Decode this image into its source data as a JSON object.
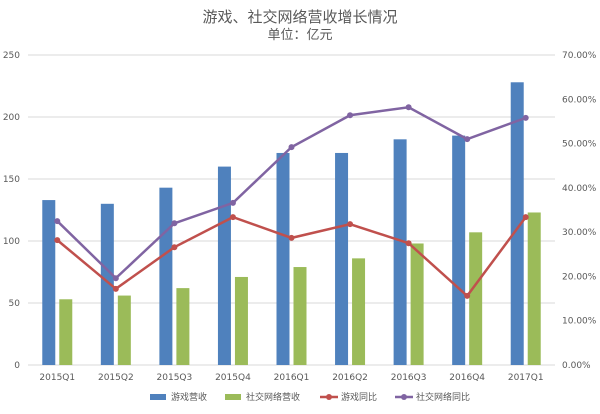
{
  "chart_data": {
    "type": "bar",
    "title": "游戏、社交网络营收增长情况",
    "subtitle": "单位：亿元",
    "categories": [
      "2015Q1",
      "2015Q2",
      "2015Q3",
      "2015Q4",
      "2016Q1",
      "2016Q2",
      "2016Q3",
      "2016Q4",
      "2017Q1"
    ],
    "y_left": {
      "ylim": [
        0,
        250
      ],
      "ticks": [
        "0",
        "50",
        "100",
        "150",
        "200",
        "250"
      ]
    },
    "y_right": {
      "ylim": [
        0,
        70
      ],
      "ticks": [
        "0.00%",
        "10.00%",
        "20.00%",
        "30.00%",
        "40.00%",
        "50.00%",
        "60.00%",
        "70.00%"
      ]
    },
    "grid": true,
    "legend_placement": "bottom",
    "series": [
      {
        "name": "游戏营收",
        "type": "bar",
        "axis": "left",
        "color": "#4f81bd",
        "values": [
          133,
          130,
          143,
          160,
          171,
          171,
          182,
          185,
          228
        ]
      },
      {
        "name": "社交网络营收",
        "type": "bar",
        "axis": "left",
        "color": "#9bbb59",
        "values": [
          53,
          56,
          62,
          71,
          79,
          86,
          98,
          107,
          123
        ]
      },
      {
        "name": "游戏同比",
        "type": "line",
        "axis": "right",
        "color": "#c0504d",
        "values": [
          28.2,
          17.2,
          26.6,
          33.4,
          28.7,
          31.8,
          27.5,
          15.6,
          33.4
        ]
      },
      {
        "name": "社交网络同比",
        "type": "line",
        "axis": "right",
        "color": "#8064a2",
        "values": [
          32.5,
          19.6,
          32.0,
          36.6,
          49.2,
          56.4,
          58.2,
          51.0,
          55.8
        ]
      }
    ]
  }
}
